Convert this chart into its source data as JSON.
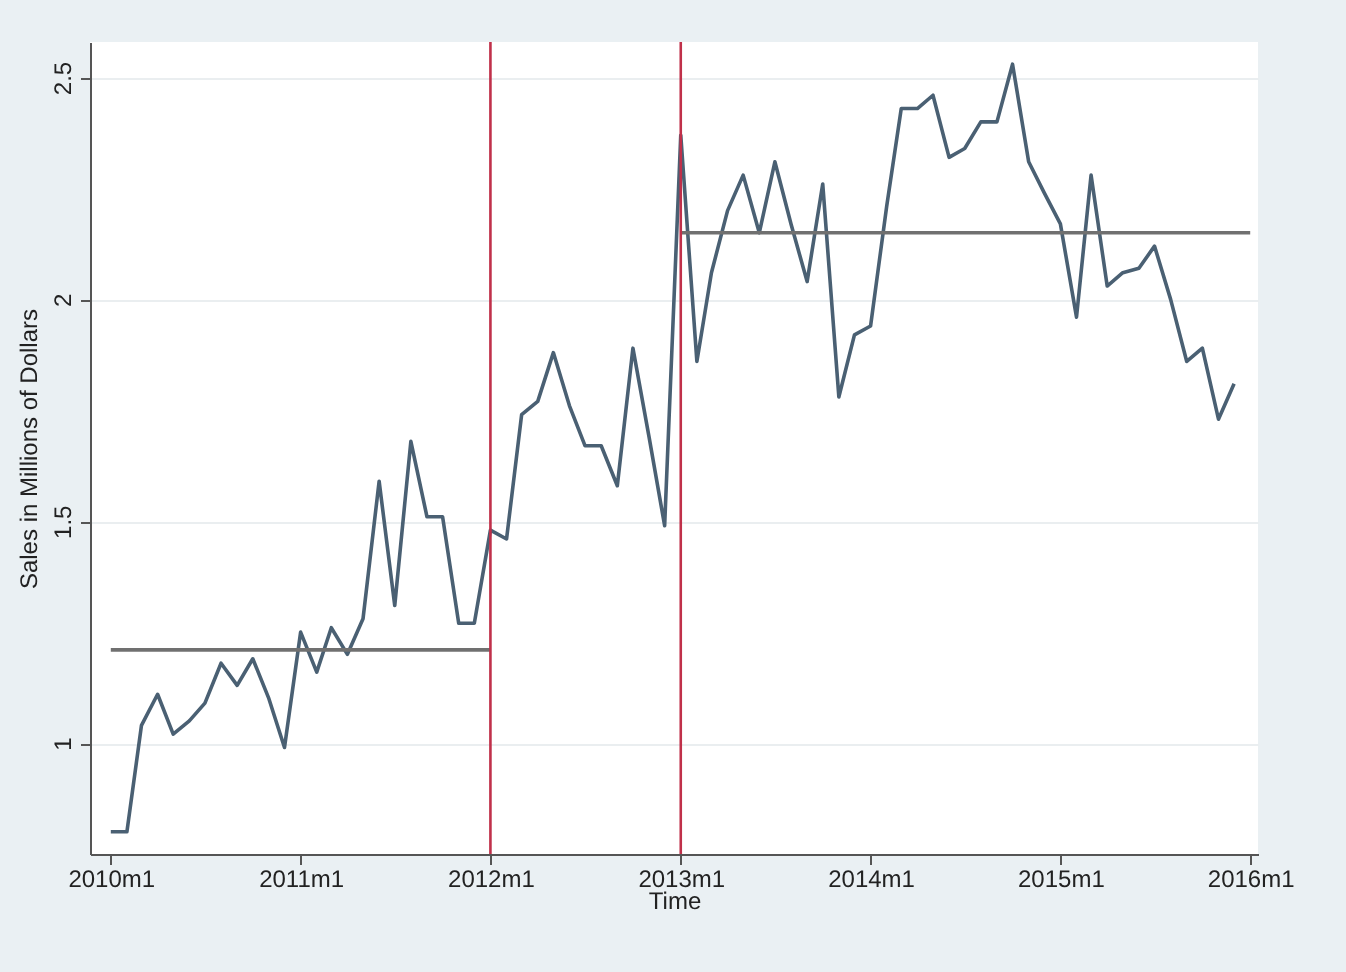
{
  "chart_data": {
    "type": "line",
    "xlabel": "Time",
    "ylabel": "Sales in Millions of Dollars",
    "x": [
      "2010-01",
      "2010-02",
      "2010-03",
      "2010-04",
      "2010-05",
      "2010-06",
      "2010-07",
      "2010-08",
      "2010-09",
      "2010-10",
      "2010-11",
      "2010-12",
      "2011-01",
      "2011-02",
      "2011-03",
      "2011-04",
      "2011-05",
      "2011-06",
      "2011-07",
      "2011-08",
      "2011-09",
      "2011-10",
      "2011-11",
      "2011-12",
      "2012-01",
      "2012-02",
      "2012-03",
      "2012-04",
      "2012-05",
      "2012-06",
      "2012-07",
      "2012-08",
      "2012-09",
      "2012-10",
      "2012-11",
      "2012-12",
      "2013-01",
      "2013-02",
      "2013-03",
      "2013-04",
      "2013-05",
      "2013-06",
      "2013-07",
      "2013-08",
      "2013-09",
      "2013-10",
      "2013-11",
      "2013-12",
      "2014-01",
      "2014-02",
      "2014-03",
      "2014-04",
      "2014-05",
      "2014-06",
      "2014-07",
      "2014-08",
      "2014-09",
      "2014-10",
      "2014-11",
      "2014-12",
      "2015-01",
      "2015-02",
      "2015-03",
      "2015-04",
      "2015-05",
      "2015-06",
      "2015-07",
      "2015-08",
      "2015-09",
      "2015-10",
      "2015-11",
      "2015-12"
    ],
    "series": [
      {
        "color": "#4a6073",
        "values": [
          0.8,
          0.8,
          1.04,
          1.11,
          1.02,
          1.05,
          1.09,
          1.18,
          1.13,
          1.19,
          1.1,
          0.99,
          1.25,
          1.16,
          1.26,
          1.2,
          1.28,
          1.59,
          1.31,
          1.68,
          1.51,
          1.51,
          1.27,
          1.27,
          1.48,
          1.46,
          1.74,
          1.77,
          1.88,
          1.76,
          1.67,
          1.67,
          1.58,
          1.89,
          1.69,
          1.49,
          2.37,
          1.86,
          2.06,
          2.2,
          2.28,
          2.15,
          2.31,
          2.17,
          2.04,
          2.26,
          1.78,
          1.92,
          1.94,
          2.21,
          2.43,
          2.43,
          2.46,
          2.32,
          2.34,
          2.4,
          2.4,
          2.53,
          2.31,
          2.24,
          2.17,
          1.96,
          2.28,
          2.03,
          2.06,
          2.07,
          2.12,
          2.0,
          1.86,
          1.89,
          1.73,
          1.81
        ]
      },
      {
        "type": "line",
        "color": "#707070",
        "x": [
          "2010-01",
          "2012-01"
        ],
        "values": [
          1.21,
          1.21
        ]
      },
      {
        "type": "line",
        "color": "#707070",
        "x": [
          "2013-01",
          "2016-01"
        ],
        "values": [
          2.15,
          2.15
        ]
      }
    ],
    "ref_lines": [
      {
        "axis": "x",
        "value": "2012-01",
        "color": "#c0304a"
      },
      {
        "axis": "x",
        "value": "2013-01",
        "color": "#c0304a"
      }
    ],
    "xlim": [
      "2009-11-22",
      "2016-01-16"
    ],
    "ylim": [
      0.75,
      2.58
    ],
    "xticks": [
      {
        "value": "2010-01",
        "label": "2010m1"
      },
      {
        "value": "2011-01",
        "label": "2011m1"
      },
      {
        "value": "2012-01",
        "label": "2012m1"
      },
      {
        "value": "2013-01",
        "label": "2013m1"
      },
      {
        "value": "2014-01",
        "label": "2014m1"
      },
      {
        "value": "2015-01",
        "label": "2015m1"
      },
      {
        "value": "2016-01",
        "label": "2016m1"
      }
    ],
    "yticks": [
      1,
      1.5,
      2,
      2.5
    ],
    "grid": "y"
  }
}
